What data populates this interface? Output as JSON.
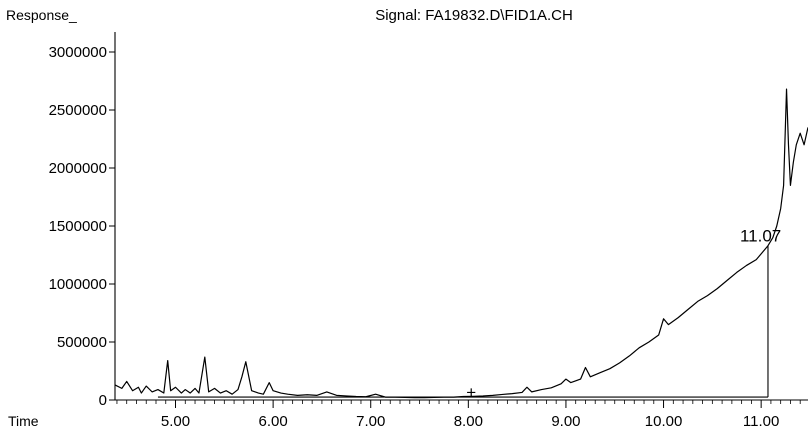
{
  "chart_data": {
    "type": "line",
    "title": "Signal: FA19832.D\\FID1A.CH",
    "ylabel": "Response_",
    "xlabel": "Time",
    "xlim": [
      4.38,
      11.48
    ],
    "ylim": [
      0,
      3000000
    ],
    "x_ticks": [
      5.0,
      6.0,
      7.0,
      8.0,
      9.0,
      10.0,
      11.0
    ],
    "x_tick_labels": [
      "5.00",
      "6.00",
      "7.00",
      "8.00",
      "9.00",
      "10.00",
      "11.00"
    ],
    "y_ticks": [
      0,
      500000,
      1000000,
      1500000,
      2000000,
      2500000,
      3000000
    ],
    "y_tick_labels": [
      "0",
      "500000",
      "1000000",
      "1500000",
      "2000000",
      "2500000",
      "3000000"
    ],
    "series": [
      {
        "x": [
          4.38,
          4.45,
          4.5,
          4.56,
          4.62,
          4.65,
          4.7,
          4.76,
          4.82,
          4.88,
          4.92,
          4.95,
          5.0,
          5.06,
          5.1,
          5.15,
          5.2,
          5.24,
          5.3,
          5.34,
          5.4,
          5.46,
          5.52,
          5.58,
          5.64,
          5.68,
          5.72,
          5.78,
          5.85,
          5.9,
          5.96,
          6.0,
          6.08,
          6.15,
          6.25,
          6.35,
          6.45,
          6.55,
          6.65,
          6.75,
          6.85,
          6.95,
          7.05,
          7.15,
          7.25,
          7.35,
          7.45,
          7.55,
          7.65,
          7.75,
          7.85,
          7.95,
          8.05,
          8.15,
          8.25,
          8.35,
          8.45,
          8.55,
          8.6,
          8.65,
          8.75,
          8.85,
          8.95,
          9.0,
          9.05,
          9.15,
          9.2,
          9.25,
          9.35,
          9.45,
          9.55,
          9.65,
          9.75,
          9.85,
          9.95,
          10.0,
          10.05,
          10.15,
          10.25,
          10.35,
          10.45,
          10.55,
          10.65,
          10.75,
          10.85,
          10.95,
          11.03,
          11.07,
          11.12,
          11.16,
          11.2,
          11.23,
          11.26,
          11.28,
          11.3,
          11.33,
          11.36,
          11.4,
          11.44,
          11.48
        ],
        "y": [
          130000,
          100000,
          160000,
          80000,
          110000,
          60000,
          120000,
          70000,
          90000,
          60000,
          340000,
          80000,
          110000,
          60000,
          90000,
          60000,
          100000,
          60000,
          370000,
          70000,
          100000,
          60000,
          80000,
          50000,
          90000,
          200000,
          330000,
          80000,
          60000,
          50000,
          150000,
          80000,
          60000,
          50000,
          40000,
          45000,
          40000,
          70000,
          40000,
          35000,
          30000,
          28000,
          50000,
          25000,
          25000,
          22000,
          20000,
          20000,
          22000,
          25000,
          25000,
          30000,
          32000,
          35000,
          40000,
          48000,
          55000,
          65000,
          110000,
          70000,
          90000,
          105000,
          140000,
          180000,
          150000,
          180000,
          280000,
          200000,
          235000,
          270000,
          320000,
          380000,
          450000,
          500000,
          560000,
          700000,
          650000,
          710000,
          780000,
          850000,
          900000,
          960000,
          1030000,
          1100000,
          1160000,
          1210000,
          1290000,
          1330000,
          1400000,
          1500000,
          1650000,
          1850000,
          2680000,
          2200000,
          1850000,
          2050000,
          2200000,
          2300000,
          2200000,
          2350000
        ]
      }
    ],
    "baseline": {
      "x": [
        4.82,
        11.07
      ],
      "y": [
        25000,
        25000
      ]
    },
    "annotations": [
      {
        "text": "11.07",
        "x": 11.07,
        "y": 1330000
      },
      {
        "text": "+",
        "x": 8.02,
        "y": 70000
      }
    ]
  }
}
